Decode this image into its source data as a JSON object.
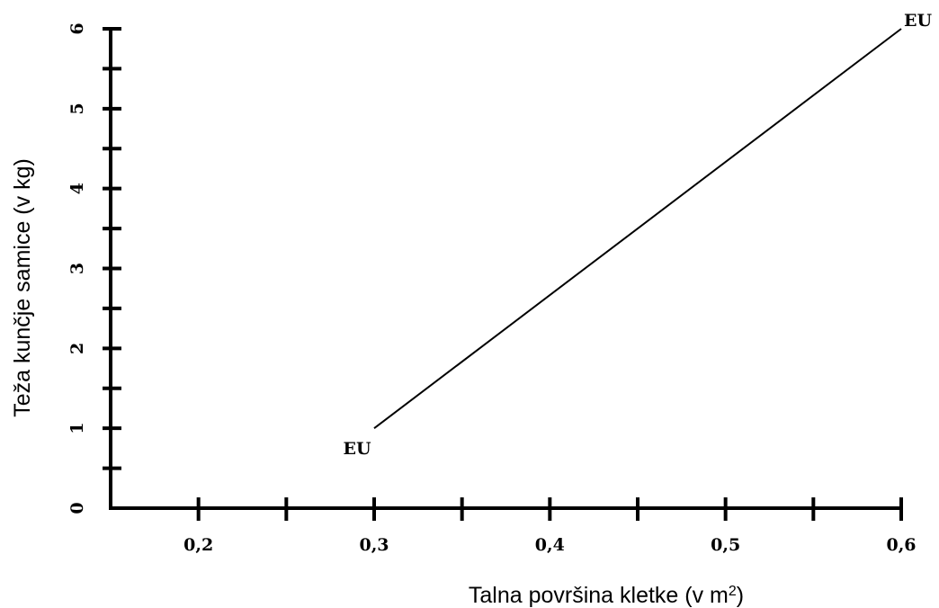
{
  "chart_data": {
    "type": "line",
    "xlabel": "Talna površina kletke (v m",
    "xlabel_sup": "2",
    "xlabel_end": ")",
    "ylabel": "Teža kunčje samice (v kg)",
    "xlim": [
      0.15,
      0.6
    ],
    "ylim": [
      0,
      6
    ],
    "x_ticks": [
      0.2,
      0.25,
      0.3,
      0.35,
      0.4,
      0.45,
      0.5,
      0.55,
      0.6
    ],
    "x_tick_labels": [
      {
        "value": 0.2,
        "label": "0,2"
      },
      {
        "value": 0.3,
        "label": "0,3"
      },
      {
        "value": 0.4,
        "label": "0,4"
      },
      {
        "value": 0.5,
        "label": "0,5"
      },
      {
        "value": 0.6,
        "label": "0,6"
      }
    ],
    "y_ticks": [
      0.5,
      1,
      1.5,
      2,
      2.5,
      3,
      3.5,
      4,
      4.5,
      5,
      5.5,
      6
    ],
    "y_tick_labels": [
      {
        "value": 0,
        "label": "0"
      },
      {
        "value": 1,
        "label": "1"
      },
      {
        "value": 2,
        "label": "2"
      },
      {
        "value": 3,
        "label": "3"
      },
      {
        "value": 4,
        "label": "4"
      },
      {
        "value": 5,
        "label": "5"
      },
      {
        "value": 6,
        "label": "6"
      }
    ],
    "series": [
      {
        "x": [
          0.3,
          0.6
        ],
        "y": [
          1,
          6
        ],
        "point_labels": [
          "EU",
          "EU"
        ]
      }
    ],
    "grid": false,
    "legend": "none"
  }
}
